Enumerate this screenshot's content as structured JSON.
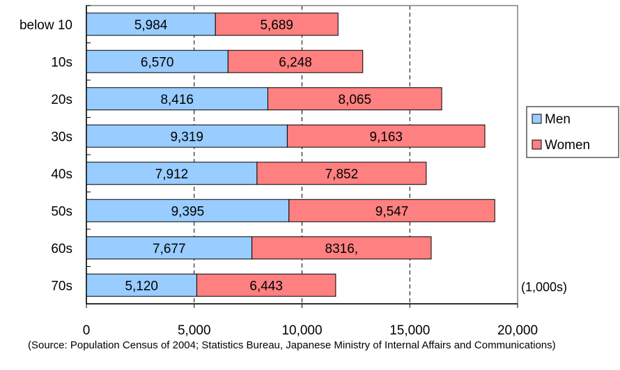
{
  "chart_data": {
    "type": "bar",
    "orientation": "horizontal",
    "stacked": true,
    "categories": [
      "below 10",
      "10s",
      "20s",
      "30s",
      "40s",
      "50s",
      "60s",
      "70s"
    ],
    "series": [
      {
        "name": "Men",
        "color": "#99CCFF",
        "values": [
          5984,
          6570,
          8416,
          9319,
          7912,
          9395,
          7677,
          5120
        ],
        "labels": [
          "5,984",
          "6,570",
          "8,416",
          "9,319",
          "7,912",
          "9,395",
          "7,677",
          "5,120"
        ]
      },
      {
        "name": "Women",
        "color": "#FF8080",
        "values": [
          5689,
          6248,
          8065,
          9163,
          7852,
          9547,
          8316,
          6443
        ],
        "labels": [
          "5,689",
          "6,248",
          "8,065",
          "9,163",
          "7,852",
          "9,547",
          "8316,",
          "6,443"
        ]
      }
    ],
    "xlim": [
      0,
      20000
    ],
    "xticks": [
      0,
      5000,
      10000,
      15000,
      20000
    ],
    "xtick_labels": [
      "0",
      "5,000",
      "10,000",
      "15,000",
      "20,000"
    ],
    "grid": "vertical dashed",
    "legend_position": "right",
    "unit_note": "(1,000s)"
  },
  "source_note": "(Source: Population Census of 2004; Statistics Bureau, Japanese Ministry of Internal Affairs and Communications)"
}
